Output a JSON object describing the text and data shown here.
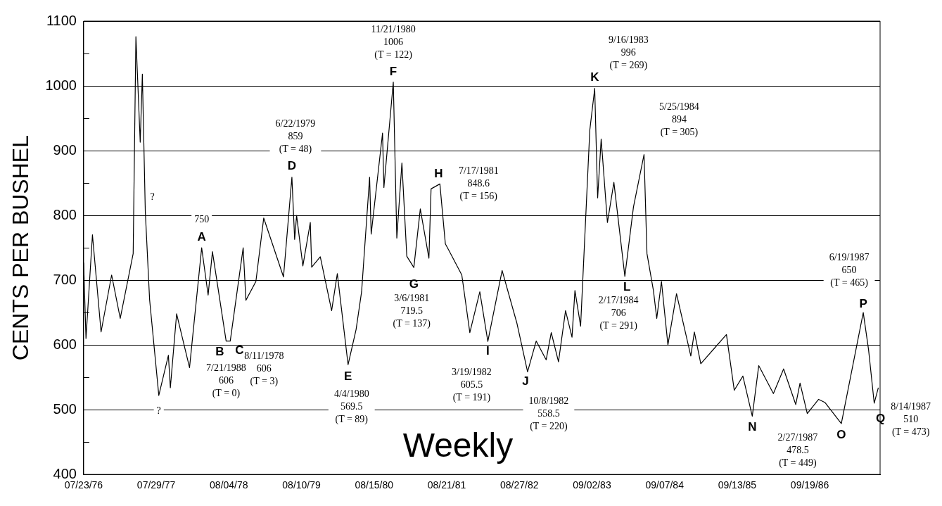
{
  "chart_data": {
    "type": "line",
    "ylabel": "CENTS PER BUSHEL",
    "xlim": [
      "1976-07-23",
      "1987-09-13"
    ],
    "xticks": [
      {
        "value": "1976-07-23",
        "label": "07/23/76"
      },
      {
        "value": "1977-07-29",
        "label": "07/29/77"
      },
      {
        "value": "1978-08-04",
        "label": "08/04/78"
      },
      {
        "value": "1979-08-10",
        "label": "08/10/79"
      },
      {
        "value": "1980-08-15",
        "label": "08/15/80"
      },
      {
        "value": "1981-08-21",
        "label": "08/21/81"
      },
      {
        "value": "1982-08-27",
        "label": "08/27/82"
      },
      {
        "value": "1983-09-02",
        "label": "09/02/83"
      },
      {
        "value": "1984-09-07",
        "label": "09/07/84"
      },
      {
        "value": "1985-09-13",
        "label": "09/13/85"
      },
      {
        "value": "1986-09-19",
        "label": "09/19/86"
      }
    ],
    "ylim": [
      400,
      1100
    ],
    "yticks": [
      400,
      {
        "value": 450,
        "label": null
      },
      500,
      {
        "value": 550,
        "label": null
      },
      600,
      {
        "value": 650,
        "label": null
      },
      700,
      {
        "value": 750,
        "label": null
      },
      800,
      {
        "value": 850,
        "label": null
      },
      900,
      {
        "value": 950,
        "label": null
      },
      1000,
      {
        "value": 1050,
        "label": null
      },
      1100
    ],
    "grid": "y",
    "marker": "none",
    "line_style": "solid",
    "series": [
      {
        "color": "#000000",
        "x": [
          "1976-07-23",
          "1976-08-04",
          "1976-09-06",
          "1976-10-20",
          "1976-12-13",
          "1977-01-26",
          "1977-04-02",
          "1977-04-16",
          "1977-05-08",
          "1977-05-19",
          "1977-06-03",
          "1977-06-25",
          "1977-08-11",
          "1977-09-29",
          "1977-10-09",
          "1977-11-10",
          "1978-01-15",
          "1978-03-18",
          "1978-04-20",
          "1978-05-12",
          "1978-07-21",
          "1978-08-11",
          "1978-10-16",
          "1978-10-30",
          "1978-12-20",
          "1979-01-29",
          "1979-05-10",
          "1979-06-22",
          "1979-07-06",
          "1979-07-16",
          "1979-08-17",
          "1979-09-24",
          "1979-10-01",
          "1979-11-14",
          "1980-01-11",
          "1980-02-09",
          "1980-04-04",
          "1980-05-15",
          "1980-06-12",
          "1980-07-23",
          "1980-07-31",
          "1980-09-27",
          "1980-10-04",
          "1980-11-21",
          "1980-12-09",
          "1981-01-04",
          "1981-01-29",
          "1981-03-06",
          "1981-04-08",
          "1981-05-22",
          "1981-06-02",
          "1981-07-17",
          "1981-08-14",
          "1981-09-01",
          "1981-11-06",
          "1981-12-17",
          "1982-02-06",
          "1982-03-19",
          "1982-05-31",
          "1982-08-15",
          "1982-10-08",
          "1982-11-21",
          "1983-01-11",
          "1983-02-06",
          "1983-03-15",
          "1983-04-20",
          "1983-05-23",
          "1983-06-07",
          "1983-07-06",
          "1983-08-22",
          "1983-09-16",
          "1983-10-01",
          "1983-10-19",
          "1983-11-20",
          "1983-12-23",
          "1984-02-17",
          "1984-04-01",
          "1984-05-25",
          "1984-06-09",
          "1984-07-12",
          "1984-07-29",
          "1984-08-22",
          "1984-09-24",
          "1984-11-07",
          "1985-01-19",
          "1985-02-06",
          "1985-03-11",
          "1985-07-20",
          "1985-08-29",
          "1985-10-12",
          "1985-11-29",
          "1986-01-01",
          "1986-03-17",
          "1986-05-08",
          "1986-07-09",
          "1986-07-31",
          "1986-09-06",
          "1986-11-03",
          "1986-12-06",
          "1987-02-27",
          "1987-06-19",
          "1987-07-16",
          "1987-08-14",
          "1987-09-04"
        ],
        "values": [
          727,
          610,
          770,
          620,
          708,
          641,
          741,
          1076,
          913,
          1018,
          806,
          670,
          522,
          584,
          534,
          648,
          565,
          750,
          677,
          744,
          606,
          606,
          750,
          669,
          698,
          796,
          705,
          859,
          763,
          800,
          722,
          789,
          720,
          736,
          653,
          710,
          569.5,
          624,
          682,
          859,
          771,
          927,
          843,
          1006,
          765,
          881,
          737,
          719.5,
          810,
          734,
          841,
          848.6,
          756,
          746,
          708,
          619,
          682,
          605.5,
          715,
          633,
          558.5,
          606,
          577,
          619,
          574,
          653,
          612,
          684,
          629,
          932,
          996,
          827,
          918,
          789,
          851,
          706,
          813,
          894,
          741,
          684,
          641,
          698,
          600,
          679,
          583,
          620,
          571,
          616,
          530,
          552,
          490,
          568,
          525,
          563,
          508,
          541,
          494,
          516,
          511,
          478.5,
          650,
          593,
          510,
          534
        ]
      }
    ],
    "annotations": [
      {
        "text": "?",
        "x": "1977-06-03",
        "y": 806
      },
      {
        "text": "?",
        "x": "1977-08-11",
        "y": 522
      },
      {
        "text": "A",
        "x": "1978-03-18",
        "y": 750
      },
      {
        "text": "750",
        "x": "1978-03-18",
        "y": 750
      },
      {
        "text": "B",
        "x": "1978-07-21",
        "y": 606
      },
      {
        "text": "7/21/1988\n606\n(T = 0)",
        "x": "1978-07-21",
        "y": 606
      },
      {
        "text": "C",
        "x": "1978-08-11",
        "y": 606
      },
      {
        "text": "8/11/1978\n606\n(T = 3)",
        "x": "1978-08-11",
        "y": 606
      },
      {
        "text": "D",
        "x": "1979-06-22",
        "y": 859
      },
      {
        "text": "6/22/1979\n859\n(T = 48)",
        "x": "1979-06-22",
        "y": 859
      },
      {
        "text": "E",
        "x": "1980-04-04",
        "y": 569.5
      },
      {
        "text": "4/4/1980\n569.5\n(T = 89)",
        "x": "1980-04-04",
        "y": 569.5
      },
      {
        "text": "F",
        "x": "1980-11-21",
        "y": 1006
      },
      {
        "text": "11/21/1980\n1006\n(T = 122)",
        "x": "1980-11-21",
        "y": 1006
      },
      {
        "text": "G",
        "x": "1981-03-06",
        "y": 719.5
      },
      {
        "text": "3/6/1981\n719.5\n(T = 137)",
        "x": "1981-03-06",
        "y": 719.5
      },
      {
        "text": "H",
        "x": "1981-07-17",
        "y": 848.6
      },
      {
        "text": "7/17/1981\n848.6\n(T = 156)",
        "x": "1981-07-17",
        "y": 848.6
      },
      {
        "text": "I",
        "x": "1982-03-19",
        "y": 605.5
      },
      {
        "text": "3/19/1982\n605.5\n(T = 191)",
        "x": "1982-03-19",
        "y": 605.5
      },
      {
        "text": "J",
        "x": "1982-10-08",
        "y": 558.5
      },
      {
        "text": "10/8/1982\n558.5\n(T = 220)",
        "x": "1982-10-08",
        "y": 558.5
      },
      {
        "text": "K",
        "x": "1983-09-16",
        "y": 996
      },
      {
        "text": "9/16/1983\n996\n(T = 269)",
        "x": "1983-09-16",
        "y": 996
      },
      {
        "text": "5/25/1984\n894\n(T = 305)",
        "x": "1984-05-25",
        "y": 894
      },
      {
        "text": "L",
        "x": "1984-02-17",
        "y": 706
      },
      {
        "text": "2/17/1984\n706\n(T = 291)",
        "x": "1984-02-17",
        "y": 706
      },
      {
        "text": "N",
        "x": "1985-11-29",
        "y": 490
      },
      {
        "text": "O",
        "x": "1987-02-27",
        "y": 478.5
      },
      {
        "text": "2/27/1987\n478.5\n(T = 449)",
        "x": "1987-02-27",
        "y": 478.5
      },
      {
        "text": "P",
        "x": "1987-06-19",
        "y": 650
      },
      {
        "text": "6/19/1987\n650\n(T = 465)",
        "x": "1987-06-19",
        "y": 650
      },
      {
        "text": "Q",
        "x": "1987-08-14",
        "y": 510
      },
      {
        "text": "8/14/1987\n510\n(T = 473)",
        "x": "1987-08-14",
        "y": 510
      },
      "Weekly"
    ]
  }
}
